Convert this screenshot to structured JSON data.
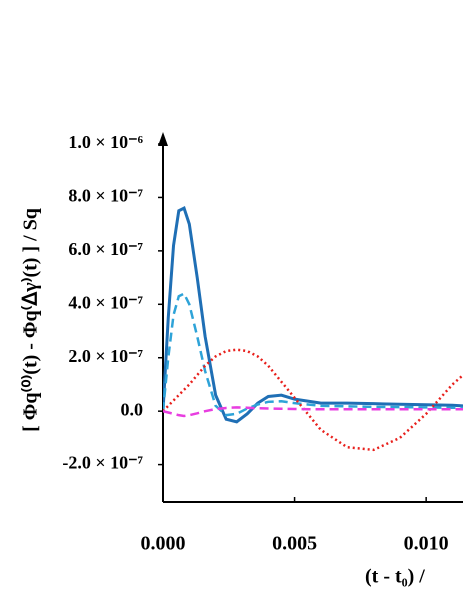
{
  "chart_data": {
    "type": "line",
    "ylabel": "[ Φq⁽⁰⁾(t) - Φq⁽ᐃγ⁾(t) ] / Sq",
    "xlabel": "(t - t₀) /",
    "x": [
      0,
      0.0002,
      0.0004,
      0.0006,
      0.0008,
      0.001,
      0.0013,
      0.0016,
      0.002,
      0.0024,
      0.0028,
      0.0032,
      0.0036,
      0.004,
      0.0045,
      0.005,
      0.006,
      0.007,
      0.008,
      0.009,
      0.01,
      0.011,
      0.0114
    ],
    "series": [
      {
        "color": "#1f6fb5",
        "dash": "solid",
        "values": [
          0,
          3.5e-07,
          6.2e-07,
          7.5e-07,
          7.6e-07,
          7e-07,
          5e-07,
          2.8e-07,
          6e-08,
          -3e-08,
          -4e-08,
          -1e-08,
          3e-08,
          5.5e-08,
          6e-08,
          4.5e-08,
          3e-08,
          3e-08,
          2.8e-08,
          2.6e-08,
          2.4e-08,
          2.2e-08,
          2e-08
        ]
      },
      {
        "color": "#2ea3d8",
        "dash": "dashed",
        "values": [
          0,
          2e-07,
          3.6e-07,
          4.3e-07,
          4.4e-07,
          4e-07,
          2.8e-07,
          1.5e-07,
          2e-08,
          -1.5e-08,
          -1e-08,
          1e-08,
          2.5e-08,
          3.5e-08,
          3.7e-08,
          3e-08,
          2e-08,
          1.8e-08,
          1.6e-08,
          1.5e-08,
          1.4e-08,
          1.3e-08,
          1.2e-08
        ]
      },
      {
        "color": "#e8201c",
        "dash": "dotted",
        "values": [
          0,
          2e-08,
          4e-08,
          6e-08,
          8e-08,
          1e-07,
          1.35e-07,
          1.7e-07,
          2.05e-07,
          2.25e-07,
          2.3e-07,
          2.25e-07,
          2.05e-07,
          1.7e-07,
          1.1e-07,
          5e-08,
          -7e-08,
          -1.35e-07,
          -1.45e-07,
          -1e-07,
          -1e-08,
          1e-07,
          1.35e-07
        ]
      },
      {
        "color": "#e83ee0",
        "dash": "dashed",
        "values": [
          0,
          -5e-09,
          -1e-08,
          -1.5e-08,
          -1.8e-08,
          -1.5e-08,
          -8e-09,
          0,
          8e-09,
          1.2e-08,
          1.4e-08,
          1.3e-08,
          1.1e-08,
          1e-08,
          9e-09,
          8e-09,
          7e-09,
          7e-09,
          7e-09,
          7e-09,
          7e-09,
          7e-09,
          7e-09
        ]
      }
    ],
    "xlim": [
      0,
      0.0114
    ],
    "xticks": [
      {
        "value": 0,
        "label": "0.000"
      },
      {
        "value": 0.005,
        "label": "0.005"
      },
      {
        "value": 0.01,
        "label": "0.010"
      }
    ],
    "ylim": [
      -3.4e-07,
      1e-06
    ],
    "yticks": [
      {
        "value": -2e-07,
        "label": "-2.0 × 10⁻⁷"
      },
      {
        "value": 0,
        "label": "0.0"
      },
      {
        "value": 2e-07,
        "label": "2.0 × 10⁻⁷"
      },
      {
        "value": 4e-07,
        "label": "4.0 × 10⁻⁷"
      },
      {
        "value": 6e-07,
        "label": "6.0 × 10⁻⁷"
      },
      {
        "value": 8e-07,
        "label": "8.0 × 10⁻⁷"
      },
      {
        "value": 1e-06,
        "label": "1.0 × 10⁻⁶"
      }
    ],
    "grid": false
  }
}
